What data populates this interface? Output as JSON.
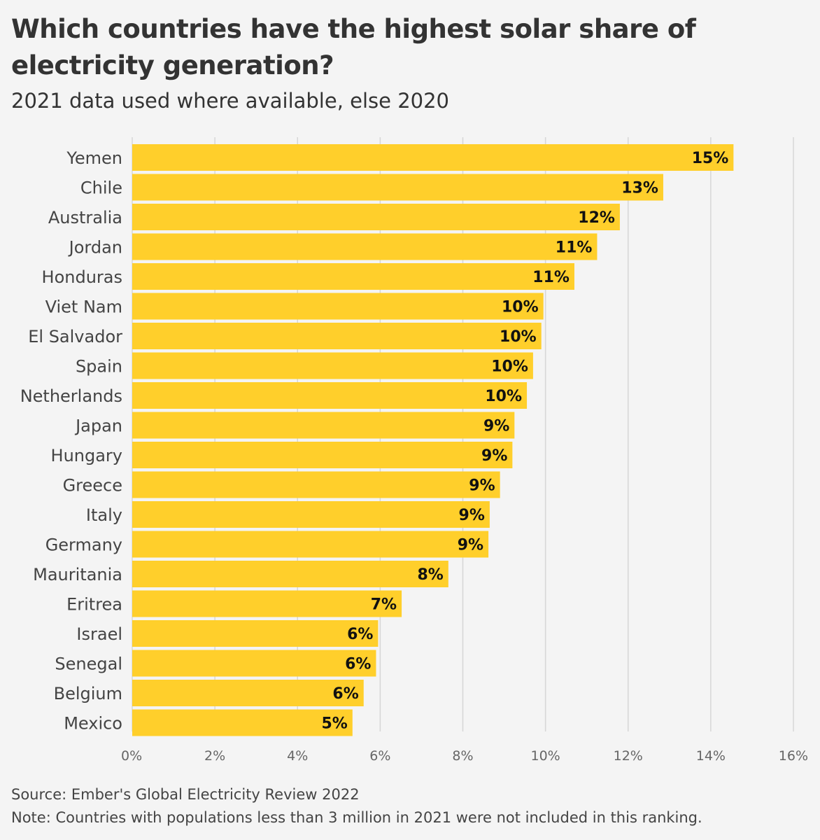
{
  "title": "Which countries have the highest solar share of electricity generation?",
  "subtitle": "2021 data used where available, else 2020",
  "source": "Source: Ember's Global Electricity Review 2022",
  "note": "Note: Countries with populations less than 3 million in 2021 were not included in this ranking.",
  "colors": {
    "bar": "#ffcf2b",
    "grid": "#d6d6d6",
    "label": "#111111",
    "category": "#444444",
    "axis": "#666666"
  },
  "chart_data": {
    "type": "bar",
    "orientation": "horizontal",
    "title": "Which countries have the highest solar share of electricity generation?",
    "subtitle": "2021 data used where available, else 2020",
    "categories": [
      "Yemen",
      "Chile",
      "Australia",
      "Jordan",
      "Honduras",
      "Viet Nam",
      "El Salvador",
      "Spain",
      "Netherlands",
      "Japan",
      "Hungary",
      "Greece",
      "Italy",
      "Germany",
      "Mauritania",
      "Eritrea",
      "Israel",
      "Senegal",
      "Belgium",
      "Mexico"
    ],
    "values": [
      14.55,
      12.85,
      11.8,
      11.25,
      10.7,
      9.95,
      9.9,
      9.7,
      9.55,
      9.25,
      9.2,
      8.9,
      8.65,
      8.62,
      7.65,
      6.52,
      5.95,
      5.9,
      5.6,
      5.33
    ],
    "data_labels": [
      "15%",
      "13%",
      "12%",
      "11%",
      "11%",
      "10%",
      "10%",
      "10%",
      "10%",
      "9%",
      "9%",
      "9%",
      "9%",
      "9%",
      "8%",
      "7%",
      "6%",
      "6%",
      "6%",
      "5%"
    ],
    "xlim": [
      0,
      16
    ],
    "x_ticks": [
      0,
      2,
      4,
      6,
      8,
      10,
      12,
      14,
      16
    ],
    "x_tick_labels": [
      "0%",
      "2%",
      "4%",
      "6%",
      "8%",
      "10%",
      "12%",
      "14%",
      "16%"
    ],
    "grid": true,
    "xlabel": "",
    "ylabel": ""
  }
}
